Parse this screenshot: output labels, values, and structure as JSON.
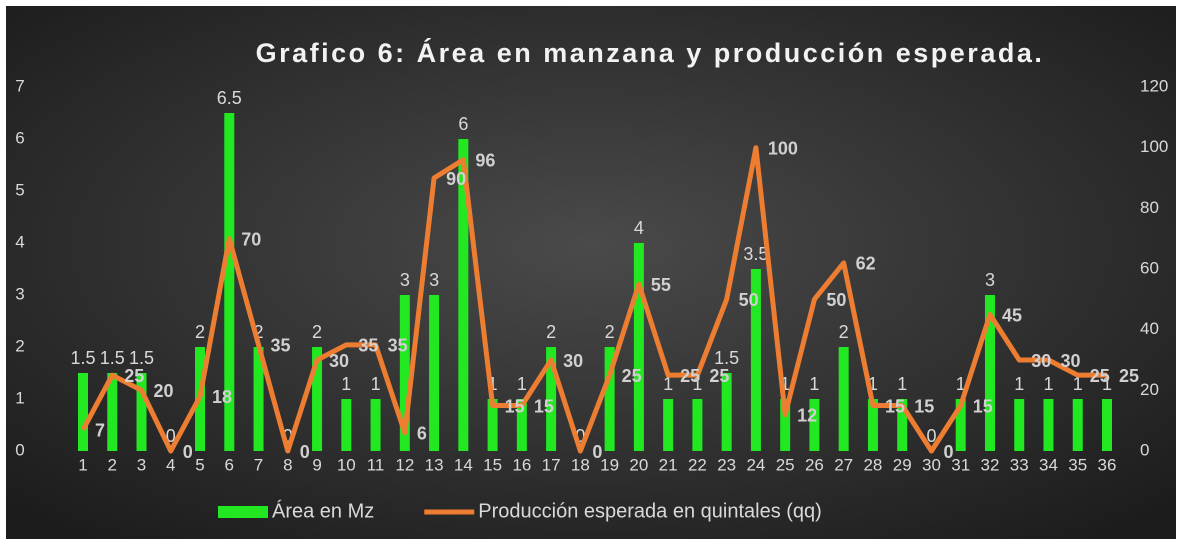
{
  "chart_data": {
    "type": "bar_line",
    "title": "Grafico 6: Área en manzana y producción esperada.",
    "categories": [
      "1",
      "2",
      "3",
      "4",
      "5",
      "6",
      "7",
      "8",
      "9",
      "10",
      "11",
      "12",
      "13",
      "14",
      "15",
      "16",
      "17",
      "18",
      "19",
      "20",
      "21",
      "22",
      "23",
      "24",
      "25",
      "26",
      "27",
      "28",
      "29",
      "30",
      "31",
      "32",
      "33",
      "34",
      "35",
      "36"
    ],
    "series": [
      {
        "name": "Área en Mz",
        "color": "#22e822",
        "kind": "bar",
        "axis": "y",
        "values": [
          1.5,
          1.5,
          1.5,
          0,
          2,
          6.5,
          2,
          0,
          2,
          1,
          1,
          3,
          3,
          6,
          1,
          1,
          2,
          0,
          2,
          4,
          1,
          1,
          1.5,
          3.5,
          1,
          1,
          2,
          1,
          1,
          0,
          1,
          3,
          1,
          1,
          1,
          1
        ]
      },
      {
        "name": "Producción esperada en quintales (qq)",
        "color": "#ed7d31",
        "kind": "line",
        "axis": "y2",
        "values": [
          7,
          25,
          20,
          0,
          18,
          70,
          35,
          0,
          30,
          35,
          35,
          6,
          90,
          96,
          15,
          15,
          30,
          0,
          25,
          55,
          25,
          25,
          50,
          100,
          12,
          50,
          62,
          15,
          15,
          0,
          15,
          45,
          30,
          30,
          25,
          25
        ]
      }
    ],
    "ylim": [
      0,
      7
    ],
    "yticks": [
      0,
      1,
      2,
      3,
      4,
      5,
      6,
      7
    ],
    "y2lim": [
      0,
      120
    ],
    "y2ticks": [
      0,
      20,
      40,
      60,
      80,
      100,
      120
    ],
    "legend": "bottom"
  }
}
